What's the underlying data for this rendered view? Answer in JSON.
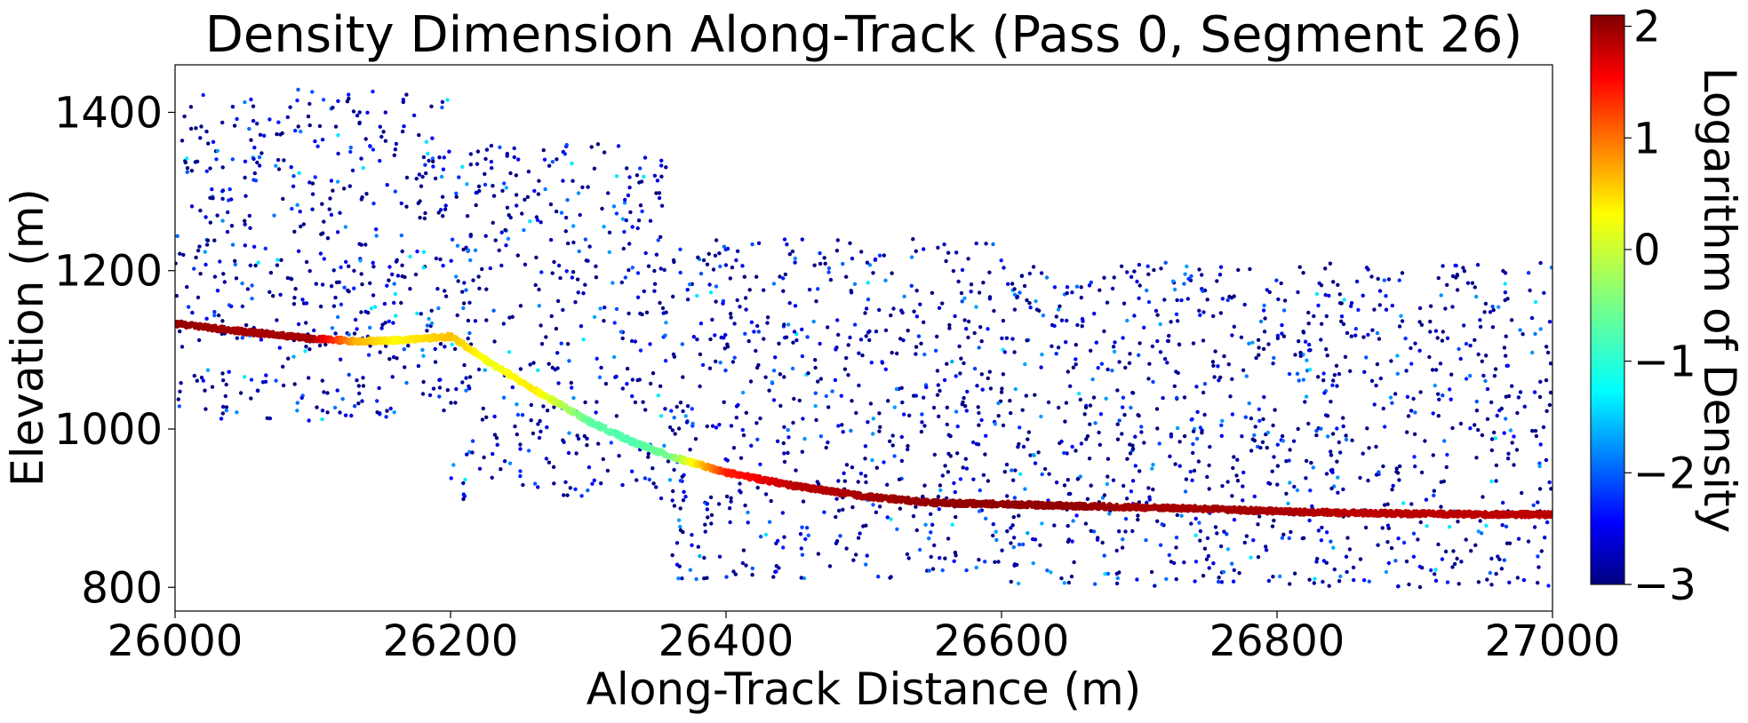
{
  "chart_data": {
    "type": "scatter",
    "title": "Density Dimension Along-Track (Pass 0, Segment 26)",
    "xlabel": "Along-Track Distance (m)",
    "ylabel": "Elevation (m)",
    "xlim": [
      26000,
      27000
    ],
    "ylim": [
      770,
      1460
    ],
    "x_ticks": [
      26000,
      26200,
      26400,
      26600,
      26800,
      27000
    ],
    "y_ticks": [
      800,
      1000,
      1200,
      1400
    ],
    "grid": false,
    "legend": "none",
    "colorbar": {
      "label": "Logarithm of Density",
      "colormap": "jet",
      "range": [
        -3,
        2.1
      ],
      "ticks": [
        -3,
        -2,
        -1,
        0,
        1,
        2
      ]
    },
    "ground_profile": {
      "description_of_density": "log density along dense ground return",
      "x": [
        26000,
        26050,
        26100,
        26130,
        26160,
        26200,
        26230,
        26260,
        26300,
        26330,
        26360,
        26400,
        26450,
        26500,
        26550,
        26600,
        26650,
        26700,
        26750,
        26800,
        26850,
        26900,
        26950,
        27000
      ],
      "y": [
        1133,
        1123,
        1114,
        1111,
        1112,
        1117,
        1082,
        1050,
        1010,
        985,
        965,
        945,
        928,
        915,
        907,
        905,
        903,
        901,
        899,
        896,
        894,
        893,
        892,
        892
      ],
      "log_density": [
        2.0,
        1.9,
        1.9,
        0.6,
        0.2,
        0.5,
        0.1,
        0.3,
        -0.6,
        -0.7,
        -0.5,
        1.3,
        1.8,
        1.9,
        2.0,
        2.0,
        2.0,
        1.9,
        1.9,
        1.9,
        1.8,
        1.8,
        1.8,
        1.8
      ]
    },
    "noise_cloud": {
      "description": "sparse low-density returns above and below ground",
      "segments": [
        {
          "x_range": [
            26000,
            26200
          ],
          "y_range": [
            1010,
            1430
          ],
          "density_range": [
            -3,
            -1.5
          ]
        },
        {
          "x_range": [
            26200,
            26360
          ],
          "y_range": [
            910,
            1360
          ],
          "density_range": [
            -3,
            -1.5
          ]
        },
        {
          "x_range": [
            26360,
            26600
          ],
          "y_range": [
            810,
            1240
          ],
          "density_range": [
            -3,
            -1.5
          ]
        },
        {
          "x_range": [
            26600,
            27000
          ],
          "y_range": [
            800,
            1210
          ],
          "density_range": [
            -3,
            -1.5
          ]
        }
      ]
    }
  }
}
